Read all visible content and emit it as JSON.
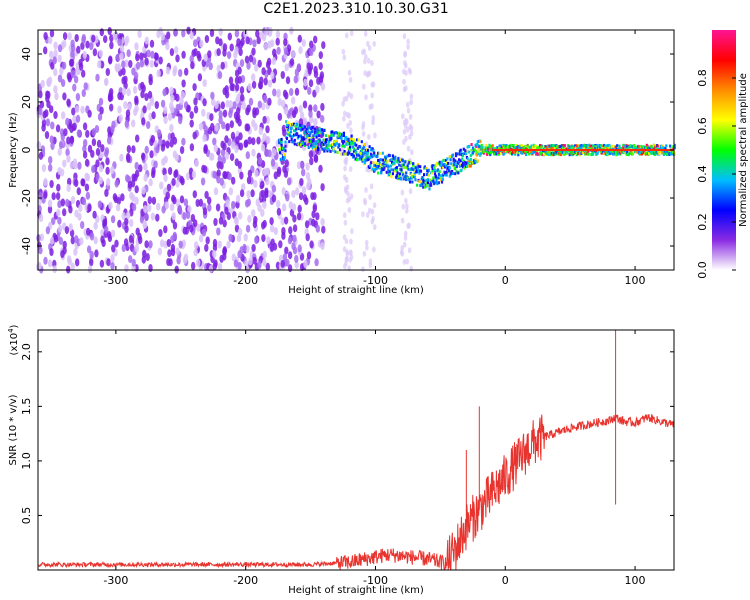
{
  "figure": {
    "title": "C2E1.2023.310.10.30.G31"
  },
  "chart_data": [
    {
      "type": "heatmap",
      "xlabel": "Height of straight line (km)",
      "ylabel": "Frequency (Hz)",
      "xlim": [
        -360,
        130
      ],
      "ylim": [
        -50,
        50
      ],
      "xticks": [
        -300,
        -200,
        -100,
        0,
        100
      ],
      "xtick_labels": [
        "-300",
        "-200",
        "-100",
        "0",
        "100"
      ],
      "yticks": [
        -40,
        -20,
        0,
        20,
        40
      ],
      "ytick_labels": [
        "-40",
        "-20",
        "0",
        "20",
        "40"
      ],
      "colorbar": {
        "label": "Normalized spectral amplitude",
        "range": [
          0,
          1
        ],
        "ticks": [
          0.0,
          0.2,
          0.4,
          0.6,
          0.8
        ],
        "tick_labels": [
          "0.0",
          "0.2",
          "0.4",
          "0.6",
          "0.8"
        ],
        "colors": [
          "#ffffff",
          "#8a2be2",
          "#0000ff",
          "#00bfff",
          "#00ff00",
          "#ffff00",
          "#ff8c00",
          "#ff0000",
          "#ff1493"
        ]
      },
      "features": [
        {
          "description": "noise region",
          "x_range": [
            -360,
            -140
          ],
          "amplitude": 0.05
        },
        {
          "description": "signal track",
          "points": [
            [
              -170,
              8
            ],
            [
              -150,
              5
            ],
            [
              -120,
              2
            ],
            [
              -100,
              -5
            ],
            [
              -80,
              -8
            ],
            [
              -60,
              -12
            ],
            [
              -40,
              -6
            ],
            [
              -20,
              0
            ],
            [
              0,
              0
            ],
            [
              130,
              0
            ]
          ]
        }
      ]
    },
    {
      "type": "line",
      "xlabel": "Height of straight line (km)",
      "ylabel": "SNR (10 * v/v)",
      "yscale_label": "(x10",
      "yscale_exp": "4",
      "yscale_close": ")",
      "xlim": [
        -360,
        130
      ],
      "ylim": [
        0,
        2.2
      ],
      "xticks": [
        -300,
        -200,
        -100,
        0,
        100
      ],
      "xtick_labels": [
        "-300",
        "-200",
        "-100",
        "0",
        "100"
      ],
      "yticks": [
        0.5,
        1.0,
        1.5,
        2.0
      ],
      "ytick_labels": [
        "0.5",
        "1.0",
        "1.5",
        "2.0"
      ],
      "color": "#e8342f",
      "series": [
        {
          "x": [
            -360,
            -300,
            -250,
            -200,
            -150,
            -120,
            -100,
            -90,
            -80,
            -60,
            -45,
            -38,
            -30,
            -20,
            -10,
            0,
            10,
            20,
            30,
            50,
            70,
            80,
            85,
            88,
            92,
            100,
            110,
            120,
            130
          ],
          "y": [
            0.05,
            0.05,
            0.05,
            0.05,
            0.05,
            0.07,
            0.12,
            0.14,
            0.13,
            0.1,
            0.06,
            0.2,
            0.4,
            0.55,
            0.7,
            0.85,
            1.0,
            1.15,
            1.22,
            1.3,
            1.35,
            1.37,
            1.4,
            1.38,
            1.36,
            1.35,
            1.4,
            1.36,
            1.33
          ]
        }
      ],
      "spikes": [
        {
          "x": -20,
          "y": 1.5
        },
        {
          "x": -30,
          "y": 1.1
        },
        {
          "x": 85,
          "y": 2.2
        },
        {
          "x": 85,
          "y": 0.6
        }
      ]
    }
  ]
}
